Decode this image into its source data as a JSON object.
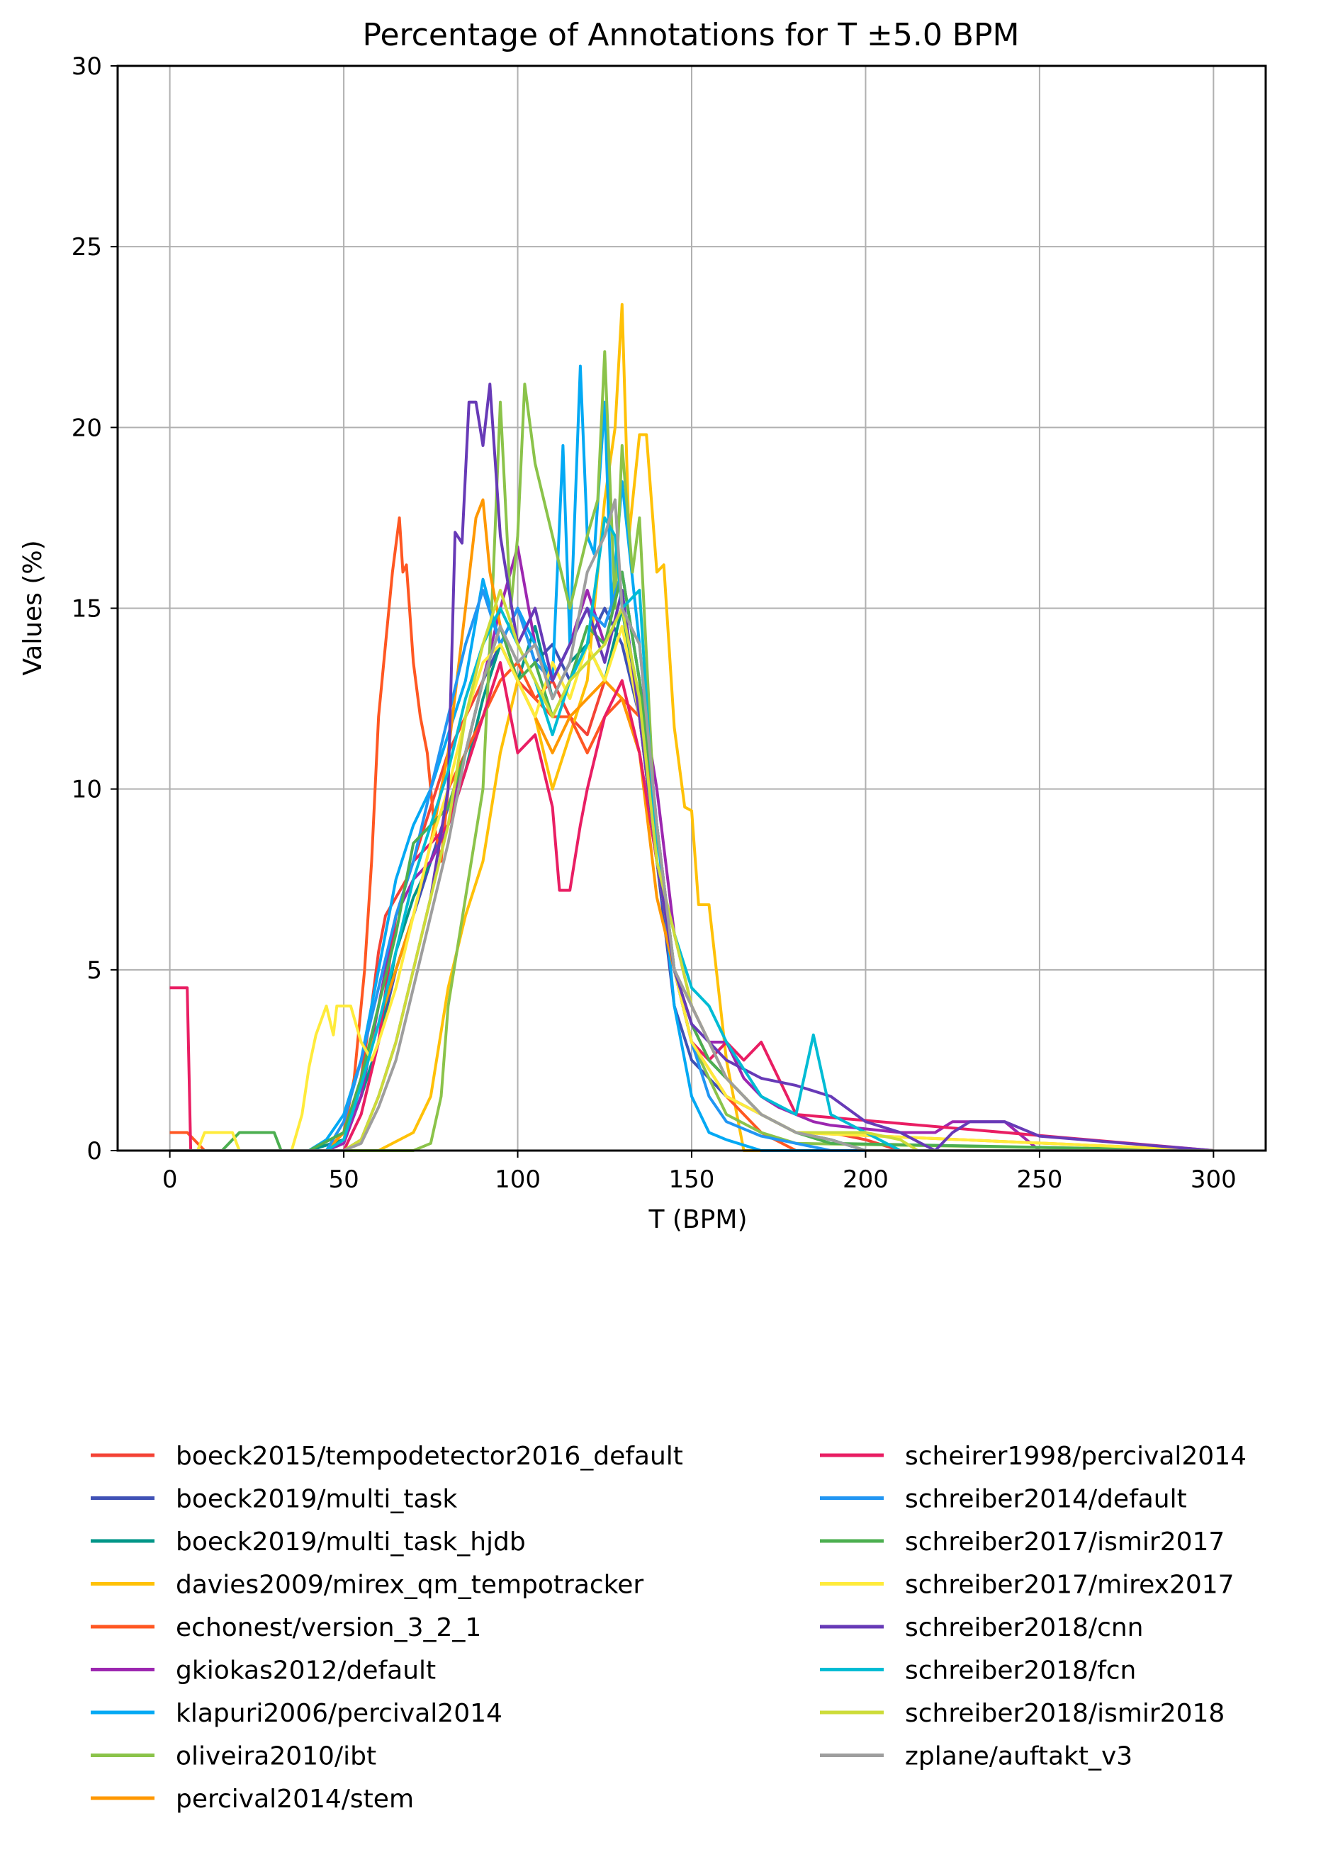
{
  "chart_data": {
    "type": "line",
    "title": "Percentage of Annotations for T ±5.0 BPM",
    "xlabel": "T (BPM)",
    "ylabel": "Values (%)",
    "xlim": [
      -15,
      315
    ],
    "ylim": [
      0,
      30
    ],
    "xticks": [
      0,
      50,
      100,
      150,
      200,
      250,
      300
    ],
    "yticks": [
      0,
      5,
      10,
      15,
      20,
      25,
      30
    ],
    "grid": true,
    "legend_position": "below plot, two columns",
    "series": [
      {
        "name": "boeck2015/tempodetector2016_default",
        "color": "#f44336",
        "x": [
          0,
          40,
          50,
          55,
          58,
          60,
          62,
          65,
          68,
          70,
          75,
          80,
          85,
          90,
          95,
          100,
          105,
          110,
          115,
          120,
          125,
          130,
          135,
          140,
          145,
          150,
          155,
          160,
          165,
          170,
          180,
          190,
          200,
          210,
          220,
          300
        ],
        "y": [
          0,
          0,
          0.5,
          2,
          4,
          5.5,
          6.5,
          7,
          7.5,
          8,
          9.5,
          11,
          12,
          13,
          14,
          13,
          12.5,
          13,
          12,
          11.5,
          13,
          12.5,
          11,
          8,
          5,
          3.5,
          2.5,
          2,
          1.5,
          1,
          0.5,
          0.5,
          0.3,
          0,
          0,
          0
        ]
      },
      {
        "name": "boeck2019/multi_task",
        "color": "#3f51b5",
        "x": [
          0,
          40,
          50,
          55,
          60,
          65,
          70,
          75,
          80,
          85,
          90,
          95,
          100,
          105,
          110,
          115,
          120,
          125,
          130,
          135,
          140,
          145,
          150,
          155,
          160,
          170,
          180,
          190,
          200,
          300
        ],
        "y": [
          0,
          0,
          0.3,
          1.5,
          3,
          5,
          6.5,
          8,
          9.5,
          11,
          13,
          14,
          15,
          13.5,
          14,
          13,
          14,
          15,
          14,
          12,
          8,
          4,
          2.5,
          2,
          1.5,
          1,
          0.5,
          0.3,
          0,
          0
        ]
      },
      {
        "name": "boeck2019/multi_task_hjdb",
        "color": "#009688",
        "x": [
          0,
          40,
          50,
          55,
          60,
          65,
          70,
          75,
          80,
          85,
          90,
          95,
          100,
          105,
          110,
          115,
          120,
          125,
          130,
          135,
          140,
          145,
          150,
          155,
          160,
          170,
          180,
          190,
          200,
          300
        ],
        "y": [
          0,
          0,
          0.3,
          1.5,
          3,
          5.5,
          7,
          8,
          9,
          10.5,
          12.5,
          14,
          13,
          14.5,
          12.5,
          13.5,
          14,
          13,
          15,
          12,
          8,
          5,
          3,
          2.5,
          2,
          1,
          0.5,
          0.3,
          0,
          0
        ]
      },
      {
        "name": "davies2009/mirex_qm_tempotracker",
        "color": "#ffc107",
        "x": [
          0,
          60,
          70,
          75,
          80,
          85,
          90,
          95,
          100,
          105,
          110,
          115,
          120,
          125,
          128,
          130,
          132,
          135,
          137,
          140,
          142,
          145,
          148,
          150,
          152,
          155,
          160,
          165,
          170,
          300
        ],
        "y": [
          0,
          0,
          0.5,
          1.5,
          4.5,
          6.5,
          8,
          11,
          13,
          12,
          10,
          11.5,
          13,
          18,
          20,
          23.4,
          17,
          19.8,
          19.8,
          16,
          16.2,
          11.7,
          9.5,
          9.4,
          6.8,
          6.8,
          2.5,
          0,
          0,
          0
        ]
      },
      {
        "name": "echonest/version_3_2_1",
        "color": "#ff5722",
        "x": [
          0,
          5,
          10,
          35,
          45,
          50,
          53,
          56,
          58,
          60,
          62,
          64,
          66,
          67,
          68,
          70,
          72,
          74,
          76,
          78,
          80,
          85,
          90,
          95,
          100,
          105,
          110,
          115,
          120,
          125,
          130,
          135,
          140,
          145,
          150,
          160,
          170,
          180,
          300
        ],
        "y": [
          0.5,
          0.5,
          0,
          0,
          0,
          0.5,
          2,
          5,
          8,
          12,
          14,
          16,
          17.5,
          16,
          16.2,
          13.5,
          12,
          11,
          9,
          8,
          10,
          11,
          12,
          13,
          13.5,
          12.5,
          12,
          12,
          11,
          12,
          12.5,
          12,
          9,
          5,
          3,
          1.5,
          0.5,
          0,
          0
        ]
      },
      {
        "name": "gkiokas2012/default",
        "color": "#9c27b0",
        "x": [
          0,
          45,
          50,
          55,
          60,
          65,
          70,
          75,
          80,
          85,
          90,
          95,
          100,
          105,
          110,
          115,
          120,
          125,
          130,
          135,
          140,
          145,
          150,
          155,
          160,
          165,
          170,
          175,
          180,
          185,
          190,
          200,
          210,
          220,
          225,
          230,
          240,
          250,
          300
        ],
        "y": [
          0,
          0,
          0.2,
          1.5,
          4,
          6.5,
          7.5,
          8,
          9,
          11,
          13,
          15,
          16.7,
          14,
          13,
          14,
          15.5,
          14,
          16,
          13,
          10,
          6,
          4,
          3,
          3,
          2,
          1.5,
          1.2,
          1,
          0.8,
          0.7,
          0.6,
          0.5,
          0.5,
          0.8,
          0.8,
          0.8,
          0,
          0
        ]
      },
      {
        "name": "klapuri2006/percival2014",
        "color": "#03a9f4",
        "x": [
          0,
          40,
          45,
          50,
          55,
          60,
          65,
          70,
          75,
          80,
          85,
          90,
          95,
          100,
          105,
          110,
          113,
          115,
          118,
          120,
          122,
          125,
          127,
          130,
          135,
          140,
          145,
          150,
          155,
          160,
          170,
          300
        ],
        "y": [
          0,
          0,
          0.3,
          1,
          2.5,
          5,
          7.5,
          9,
          10,
          11.5,
          13,
          15.8,
          14,
          15,
          14,
          13,
          19.5,
          14,
          21.7,
          17,
          16.5,
          20.7,
          15,
          18.5,
          14,
          9,
          4,
          1.5,
          0.5,
          0.3,
          0,
          0
        ]
      },
      {
        "name": "oliveira2010/ibt",
        "color": "#8bc34a",
        "x": [
          0,
          70,
          75,
          78,
          80,
          85,
          90,
          93,
          95,
          98,
          100,
          102,
          105,
          110,
          115,
          120,
          123,
          125,
          128,
          130,
          133,
          135,
          140,
          145,
          150,
          155,
          160,
          170,
          180,
          300
        ],
        "y": [
          0,
          0,
          0.2,
          1.5,
          4,
          7,
          10,
          16,
          20.7,
          15,
          17,
          21.2,
          19,
          17,
          15,
          17,
          18,
          22.1,
          15,
          19.5,
          16,
          17.5,
          8,
          5,
          3,
          2,
          1,
          0.5,
          0.2,
          0
        ]
      },
      {
        "name": "percival2014/stem",
        "color": "#ff9800",
        "x": [
          0,
          45,
          50,
          55,
          60,
          65,
          70,
          75,
          80,
          85,
          88,
          90,
          92,
          95,
          100,
          105,
          110,
          115,
          120,
          125,
          130,
          135,
          140,
          145,
          150,
          155,
          160,
          170,
          180,
          300
        ],
        "y": [
          0,
          0,
          0.5,
          2,
          3.5,
          5,
          6.5,
          8.5,
          11,
          15,
          17.5,
          18,
          16,
          14.5,
          13,
          12,
          11,
          12,
          12.5,
          13,
          12.5,
          11,
          7,
          5,
          4,
          3,
          2,
          1,
          0.5,
          0
        ]
      },
      {
        "name": "scheirer1998/percival2014",
        "color": "#e91e63",
        "x": [
          0,
          5,
          6,
          10,
          30,
          50,
          55,
          60,
          65,
          70,
          75,
          80,
          85,
          90,
          95,
          100,
          105,
          110,
          112,
          115,
          118,
          120,
          125,
          130,
          135,
          140,
          145,
          150,
          155,
          160,
          165,
          170,
          175,
          180,
          300
        ],
        "y": [
          4.5,
          4.5,
          0,
          0,
          0,
          0,
          1,
          3,
          6.5,
          8,
          8.5,
          9,
          10.5,
          12,
          13.5,
          11,
          11.5,
          9.5,
          7.2,
          7.2,
          9,
          10,
          12,
          13,
          11,
          8,
          5,
          3,
          2.5,
          3,
          2.5,
          3,
          2,
          1,
          0
        ]
      },
      {
        "name": "schreiber2014/default",
        "color": "#2196f3",
        "x": [
          0,
          45,
          50,
          55,
          60,
          65,
          70,
          75,
          80,
          85,
          90,
          95,
          100,
          105,
          110,
          115,
          120,
          125,
          130,
          135,
          140,
          145,
          150,
          155,
          160,
          170,
          180,
          190,
          200,
          300
        ],
        "y": [
          0,
          0,
          0.8,
          2.5,
          4.5,
          6.5,
          8,
          10,
          12,
          14,
          15.5,
          14,
          15,
          13.5,
          13,
          14,
          15,
          14.5,
          16,
          13,
          9,
          5,
          3,
          1.5,
          0.8,
          0.4,
          0.2,
          0,
          0,
          0
        ]
      },
      {
        "name": "schreiber2017/ismir2017",
        "color": "#4caf50",
        "x": [
          0,
          10,
          15,
          20,
          25,
          30,
          32,
          40,
          50,
          55,
          60,
          65,
          70,
          75,
          80,
          85,
          90,
          95,
          100,
          105,
          110,
          115,
          120,
          125,
          130,
          135,
          140,
          145,
          150,
          155,
          160,
          170,
          180,
          190,
          300
        ],
        "y": [
          0,
          0,
          0,
          0.5,
          0.5,
          0.5,
          0,
          0,
          0.5,
          2,
          4,
          6,
          8.5,
          9,
          9.5,
          11,
          13,
          14.5,
          13,
          13.5,
          12,
          13,
          14.5,
          14,
          16,
          13,
          9,
          5,
          3.5,
          2.5,
          2,
          1,
          0.5,
          0.2,
          0
        ]
      },
      {
        "name": "schreiber2017/mirex2017",
        "color": "#ffeb3b",
        "x": [
          0,
          8,
          10,
          15,
          18,
          20,
          35,
          38,
          40,
          42,
          45,
          47,
          48,
          50,
          52,
          55,
          58,
          60,
          65,
          70,
          75,
          80,
          85,
          90,
          95,
          100,
          105,
          110,
          115,
          120,
          125,
          130,
          135,
          140,
          145,
          150,
          160,
          170,
          180,
          300
        ],
        "y": [
          0,
          0,
          0.5,
          0.5,
          0.5,
          0,
          0,
          1,
          2.3,
          3.2,
          4,
          3.2,
          4,
          4,
          4,
          3,
          2.5,
          3,
          4.5,
          6.5,
          8.5,
          10,
          12,
          13.5,
          14,
          13,
          12,
          13.5,
          12.5,
          14,
          13,
          14.5,
          12,
          8,
          5,
          3,
          1.5,
          1,
          0.5,
          0
        ]
      },
      {
        "name": "schreiber2018/cnn",
        "color": "#673ab7",
        "x": [
          0,
          50,
          55,
          60,
          65,
          70,
          75,
          80,
          82,
          84,
          86,
          88,
          90,
          92,
          95,
          100,
          105,
          110,
          115,
          120,
          125,
          130,
          135,
          140,
          145,
          150,
          160,
          170,
          180,
          190,
          200,
          210,
          220,
          225,
          230,
          240,
          250,
          300
        ],
        "y": [
          0,
          0,
          0.3,
          1.5,
          3,
          5,
          7,
          10,
          17.1,
          16.8,
          20.7,
          20.7,
          19.5,
          21.2,
          17,
          14,
          15,
          13,
          14,
          15,
          13.5,
          15.5,
          12,
          8,
          5,
          3.5,
          2.5,
          2,
          1.8,
          1.5,
          0.8,
          0.5,
          0,
          0.5,
          0.8,
          0.8,
          0.4,
          0
        ]
      },
      {
        "name": "schreiber2018/fcn",
        "color": "#00bcd4",
        "x": [
          0,
          45,
          50,
          55,
          60,
          65,
          70,
          75,
          80,
          85,
          90,
          95,
          100,
          105,
          110,
          115,
          120,
          125,
          128,
          130,
          135,
          140,
          145,
          150,
          155,
          160,
          170,
          180,
          185,
          190,
          200,
          210,
          300
        ],
        "y": [
          0,
          0,
          0.3,
          1.8,
          3.5,
          5.5,
          7.5,
          9,
          10.5,
          12.5,
          14,
          15,
          14,
          13,
          11.5,
          13,
          14,
          17.5,
          17,
          15,
          15.5,
          8,
          6,
          4.5,
          4,
          3,
          1.5,
          1,
          3.2,
          1,
          0.5,
          0,
          0
        ]
      },
      {
        "name": "schreiber2018/ismir2018",
        "color": "#cddc39",
        "x": [
          0,
          50,
          55,
          60,
          65,
          70,
          75,
          80,
          85,
          90,
          95,
          100,
          105,
          110,
          115,
          120,
          125,
          130,
          135,
          140,
          145,
          150,
          155,
          160,
          170,
          180,
          190,
          200,
          210,
          215,
          300
        ],
        "y": [
          0,
          0,
          0.3,
          1.5,
          3,
          5,
          7,
          9,
          12,
          14,
          15.5,
          14,
          13,
          12,
          13,
          13.5,
          14,
          15,
          12.5,
          8,
          6,
          4,
          3,
          2,
          1,
          0.5,
          0.5,
          0.5,
          0.3,
          0,
          0
        ]
      },
      {
        "name": "zplane/auftakt_v3",
        "color": "#9e9e9e",
        "x": [
          0,
          50,
          55,
          60,
          65,
          70,
          75,
          80,
          85,
          90,
          95,
          100,
          105,
          110,
          115,
          120,
          125,
          128,
          130,
          135,
          140,
          145,
          150,
          155,
          160,
          170,
          180,
          190,
          200,
          300
        ],
        "y": [
          0,
          0,
          0.2,
          1.2,
          2.5,
          4.5,
          6.5,
          8.5,
          11,
          13,
          14.5,
          13.5,
          14,
          12.5,
          13.5,
          16,
          17,
          18,
          15,
          14,
          9,
          5,
          4,
          3,
          2,
          1,
          0.5,
          0.3,
          0,
          0
        ]
      }
    ]
  }
}
